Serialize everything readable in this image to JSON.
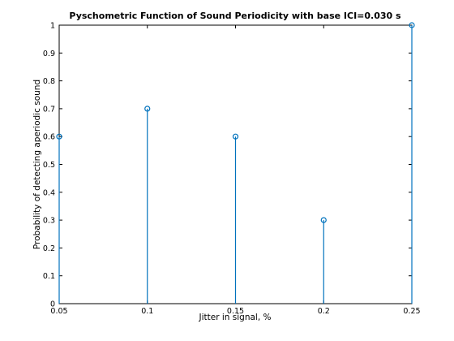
{
  "chart_data": {
    "type": "stem",
    "title": "Pyschometric Function of Sound Periodicity with base ICI=0.030 s",
    "xlabel": "Jitter in signal, %",
    "ylabel": "Probability of detecting aperiodic sound",
    "xlim": [
      0.05,
      0.25
    ],
    "ylim": [
      0,
      1
    ],
    "xticks": [
      "0.05",
      "0.1",
      "0.15",
      "0.2",
      "0.25"
    ],
    "yticks": [
      "0",
      "0.1",
      "0.2",
      "0.3",
      "0.4",
      "0.5",
      "0.6",
      "0.7",
      "0.8",
      "0.9",
      "1"
    ],
    "x": [
      0.05,
      0.1,
      0.15,
      0.2,
      0.25
    ],
    "y": [
      0.6,
      0.7,
      0.6,
      0.3,
      1.0
    ],
    "grid": false,
    "marker": "circle",
    "series_color": "#0072BD"
  }
}
